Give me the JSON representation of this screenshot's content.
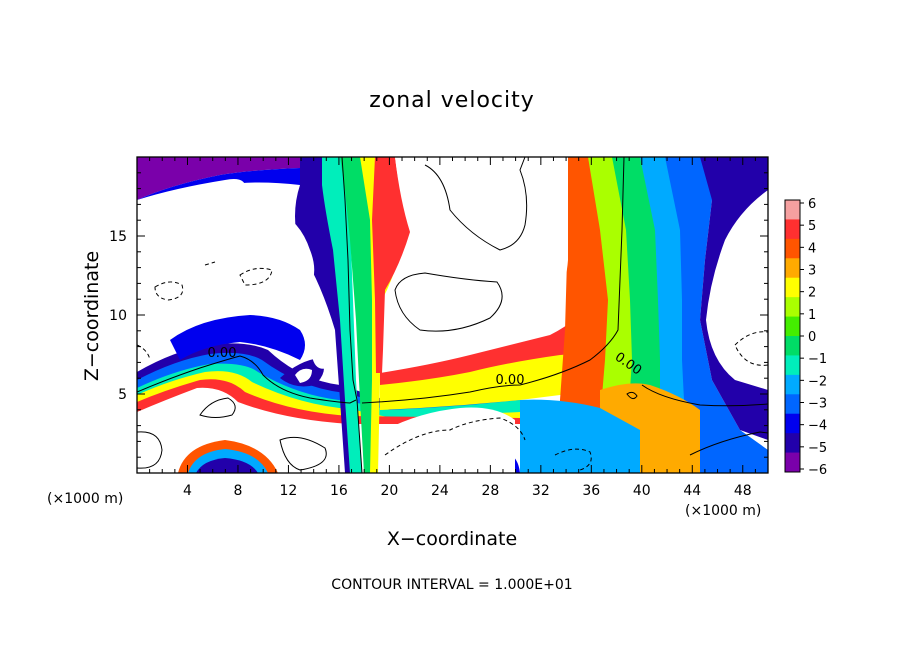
{
  "chart_data": {
    "type": "heatmap",
    "title": "zonal velocity",
    "xlabel": "X−coordinate",
    "ylabel": "Z−coordinate",
    "x_unit_label": "(×1000 m)",
    "y_unit_label": "(×1000 m)",
    "xlim": [
      0,
      50
    ],
    "ylim": [
      0,
      20
    ],
    "xticks": [
      4,
      8,
      12,
      16,
      20,
      24,
      28,
      32,
      36,
      40,
      44,
      48
    ],
    "yticks": [
      5,
      10,
      15
    ],
    "colorbar": {
      "ticks": [
        6,
        5,
        4,
        3,
        2,
        1,
        0,
        -1,
        -2,
        -3,
        -4,
        -5,
        -6
      ],
      "tick_labels": [
        "6",
        "5",
        "4",
        "3",
        "2",
        "1",
        "0",
        "−1",
        "−2",
        "−3",
        "−4",
        "−5",
        "−6"
      ],
      "colors": [
        "#f5a0a0",
        "#ff3030",
        "#ff5500",
        "#ffaa00",
        "#ffff00",
        "#aaff00",
        "#44ee00",
        "#00dd66",
        "#00eebb",
        "#00aaff",
        "#0066ff",
        "#0000ee",
        "#2200aa",
        "#7a00aa"
      ]
    },
    "contour_labels": [
      "0.00",
      "0.00",
      "0.00"
    ],
    "footer": "CONTOUR INTERVAL = 1.000E+01"
  }
}
